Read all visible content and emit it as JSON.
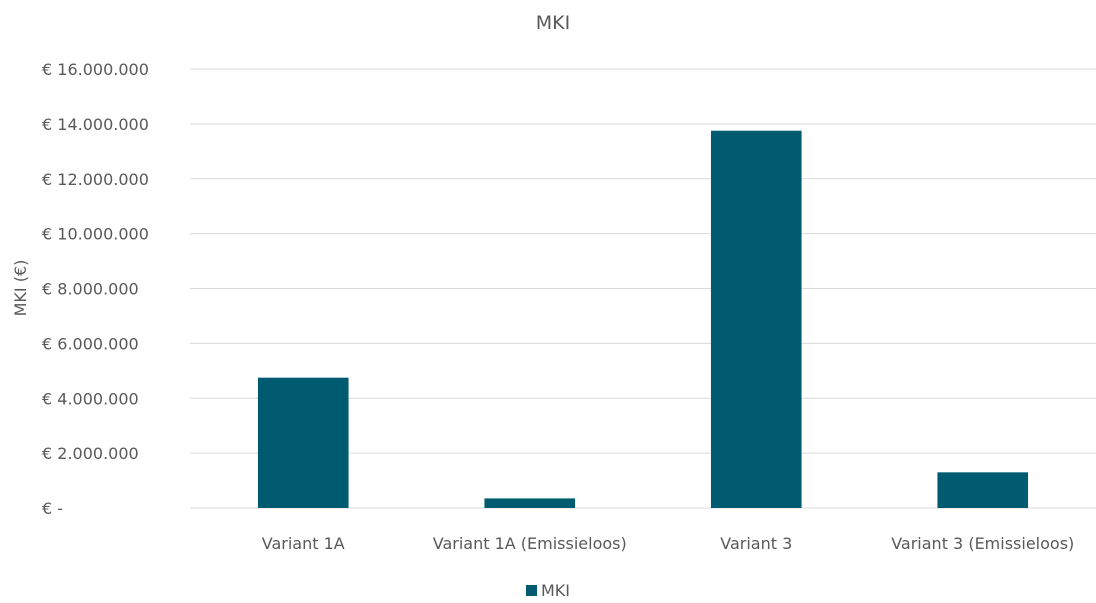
{
  "chart_data": {
    "type": "bar",
    "title": "MKI",
    "ylabel": "MKI (€)",
    "xlabel": "",
    "categories": [
      "Variant 1A",
      "Variant 1A (Emissieloos)",
      "Variant 3",
      "Variant 3 (Emissieloos)"
    ],
    "series": [
      {
        "name": "MKI",
        "values": [
          4750000,
          350000,
          13750000,
          1300000
        ],
        "color": "#005b70"
      }
    ],
    "ylim": [
      0,
      16000000
    ],
    "yticks": [
      0,
      2000000,
      4000000,
      6000000,
      8000000,
      10000000,
      12000000,
      14000000,
      16000000
    ],
    "ytick_labels": [
      "€ -",
      "€ 2.000.000",
      "€ 4.000.000",
      "€ 6.000.000",
      "€ 8.000.000",
      "€ 10.000.000",
      "€ 12.000.000",
      "€ 14.000.000",
      "€ 16.000.000"
    ],
    "grid": true,
    "legend": "bottom",
    "colors": {
      "gridline": "#d9d9d9",
      "text": "#595959"
    }
  }
}
